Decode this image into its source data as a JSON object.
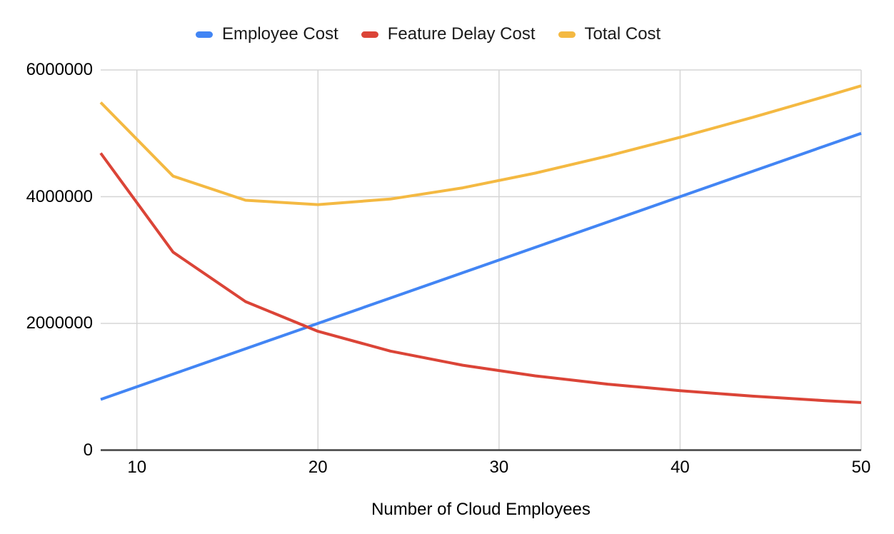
{
  "page": {
    "background": "#ffffff",
    "text_color": "#000000",
    "gridline_color": "#d5d5d5",
    "axis_line_color": "#424242"
  },
  "legend": {
    "position": "top",
    "items": [
      {
        "label": "Employee Cost",
        "color": "#4285F4"
      },
      {
        "label": "Feature Delay Cost",
        "color": "#DB4437"
      },
      {
        "label": "Total Cost",
        "color": "#F4B942"
      }
    ]
  },
  "chart_data": {
    "type": "line",
    "title": "",
    "xlabel": "Number of Cloud Employees",
    "ylabel": "",
    "x": [
      8,
      12,
      16,
      20,
      24,
      28,
      32,
      36,
      40,
      44,
      48,
      50
    ],
    "series": [
      {
        "name": "Employee Cost",
        "color": "#4285F4",
        "values": [
          800000,
          1200000,
          1600000,
          2000000,
          2400000,
          2800000,
          3200000,
          3600000,
          4000000,
          4400000,
          4800000,
          5000000
        ]
      },
      {
        "name": "Feature Delay Cost",
        "color": "#DB4437",
        "values": [
          4687500,
          3125000,
          2343750,
          1875000,
          1562500,
          1339286,
          1171875,
          1041667,
          937500,
          852273,
          781250,
          750000
        ]
      },
      {
        "name": "Total Cost",
        "color": "#F4B942",
        "values": [
          5487500,
          4325000,
          3943750,
          3875000,
          3962500,
          4139286,
          4371875,
          4641667,
          4937500,
          5252273,
          5581250,
          5750000
        ]
      }
    ],
    "x_ticks": [
      10,
      20,
      30,
      40,
      50
    ],
    "y_ticks": [
      0,
      2000000,
      4000000,
      6000000
    ],
    "xlim": [
      8,
      50
    ],
    "ylim": [
      0,
      6000000
    ],
    "grid": true,
    "legend_position": "top"
  }
}
